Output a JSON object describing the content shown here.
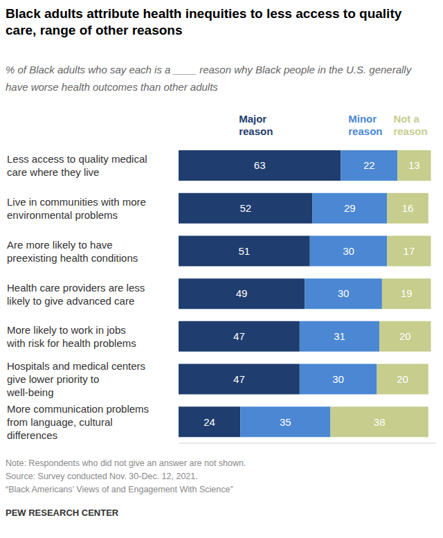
{
  "chart_data": {
    "type": "bar",
    "orientation": "horizontal",
    "stacked": true,
    "data_labels": true,
    "tick_labels": false,
    "title": "Black adults attribute health inequities to less access to quality care, range of other reasons",
    "subtitle": "% of Black adults who say each is a ____ reason why Black people in the U.S. generally have worse health outcomes than other adults",
    "categories": [
      "Less access to quality medical care where they live",
      "Live in communities with more environmental problems",
      "Are more likely to have preexisting health conditions",
      "Health care providers are less likely to give advanced care",
      "More likely to work in jobs with risk for health problems",
      "Hospitals and medical centers give lower priority to well-being",
      "More communication problems from language, cultural differences"
    ],
    "series": [
      {
        "name": "Major reason",
        "color": "#1f3d6e",
        "values": [
          63,
          52,
          51,
          49,
          47,
          47,
          24
        ]
      },
      {
        "name": "Minor reason",
        "color": "#4b87d2",
        "values": [
          22,
          29,
          30,
          30,
          31,
          30,
          35
        ]
      },
      {
        "name": "Not a reason",
        "color": "#c6cd8d",
        "values": [
          13,
          16,
          17,
          19,
          20,
          20,
          38
        ]
      }
    ],
    "xlim": [
      0,
      100
    ],
    "note": "Note: Respondents who did not give an answer are not shown.",
    "source": "Source: Survey conducted Nov. 30-Dec. 12, 2021.",
    "report": "“Black Americans’ Views of and Engagement With Science”",
    "credit": "PEW RESEARCH CENTER"
  }
}
